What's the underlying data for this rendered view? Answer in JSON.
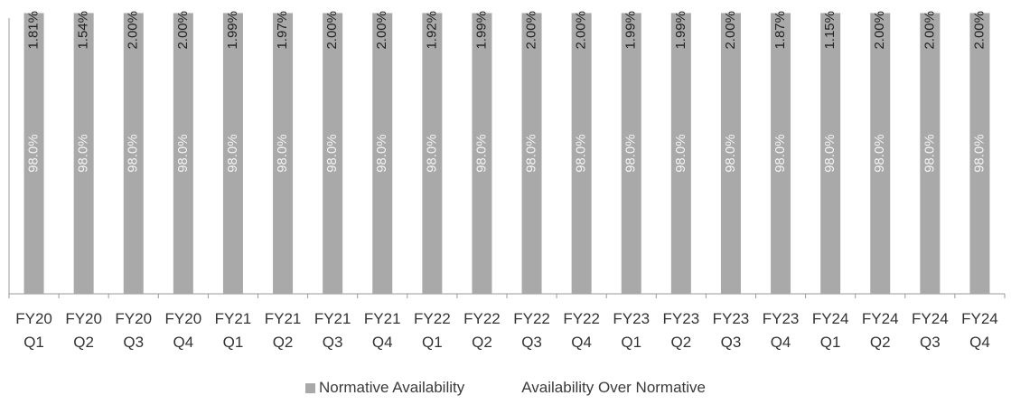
{
  "chart_data": {
    "type": "bar",
    "stacked": true,
    "categories": [
      [
        "FY20",
        "Q1"
      ],
      [
        "FY20",
        "Q2"
      ],
      [
        "FY20",
        "Q3"
      ],
      [
        "FY20",
        "Q4"
      ],
      [
        "FY21",
        "Q1"
      ],
      [
        "FY21",
        "Q2"
      ],
      [
        "FY21",
        "Q3"
      ],
      [
        "FY21",
        "Q4"
      ],
      [
        "FY22",
        "Q1"
      ],
      [
        "FY22",
        "Q2"
      ],
      [
        "FY22",
        "Q3"
      ],
      [
        "FY22",
        "Q4"
      ],
      [
        "FY23",
        "Q1"
      ],
      [
        "FY23",
        "Q2"
      ],
      [
        "FY23",
        "Q3"
      ],
      [
        "FY23",
        "Q4"
      ],
      [
        "FY24",
        "Q1"
      ],
      [
        "FY24",
        "Q2"
      ],
      [
        "FY24",
        "Q3"
      ],
      [
        "FY24",
        "Q4"
      ]
    ],
    "series": [
      {
        "name": "Normative Availability",
        "color": "#a9a9a9",
        "values": [
          98.0,
          98.0,
          98.0,
          98.0,
          98.0,
          98.0,
          98.0,
          98.0,
          98.0,
          98.0,
          98.0,
          98.0,
          98.0,
          98.0,
          98.0,
          98.0,
          98.0,
          98.0,
          98.0,
          98.0
        ],
        "labels": [
          "98.0%",
          "98.0%",
          "98.0%",
          "98.0%",
          "98.0%",
          "98.0%",
          "98.0%",
          "98.0%",
          "98.0%",
          "98.0%",
          "98.0%",
          "98.0%",
          "98.0%",
          "98.0%",
          "98.0%",
          "98.0%",
          "98.0%",
          "98.0%",
          "98.0%",
          "98.0%"
        ]
      },
      {
        "name": "Availability Over Normative",
        "color": "#ffffff",
        "values": [
          1.81,
          1.54,
          2.0,
          2.0,
          1.99,
          1.97,
          2.0,
          2.0,
          1.92,
          1.99,
          2.0,
          2.0,
          1.99,
          1.99,
          2.0,
          1.87,
          1.15,
          2.0,
          2.0,
          2.0
        ],
        "labels": [
          "1.81%",
          "1.54%",
          "2.00%",
          "2.00%",
          "1.99%",
          "1.97%",
          "2.00%",
          "2.00%",
          "1.92%",
          "1.99%",
          "2.00%",
          "2.00%",
          "1.99%",
          "1.99%",
          "2.00%",
          "1.87%",
          "1.15%",
          "2.00%",
          "2.00%",
          "2.00%"
        ]
      }
    ],
    "ylim": [
      0,
      100
    ],
    "grid": false,
    "legend": "bottom"
  }
}
